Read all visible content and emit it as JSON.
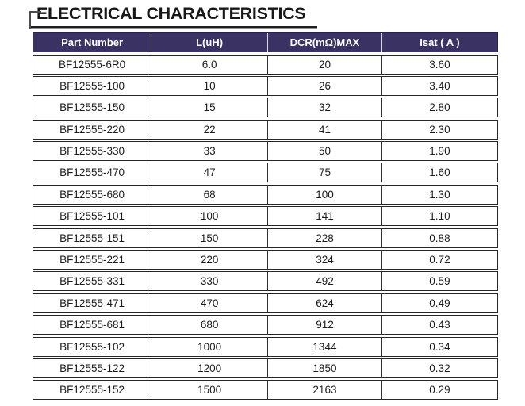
{
  "page": {
    "title": "ELECTRICAL CHARACTERISTICS"
  },
  "table": {
    "columns": [
      "Part Number",
      "L(uH)",
      "DCR(mΩ)MAX",
      "Isat ( A )"
    ],
    "rows": [
      [
        "BF12555-6R0",
        "6.0",
        "20",
        "3.60"
      ],
      [
        "BF12555-100",
        "10",
        "26",
        "3.40"
      ],
      [
        "BF12555-150",
        "15",
        "32",
        "2.80"
      ],
      [
        "BF12555-220",
        "22",
        "41",
        "2.30"
      ],
      [
        "BF12555-330",
        "33",
        "50",
        "1.90"
      ],
      [
        "BF12555-470",
        "47",
        "75",
        "1.60"
      ],
      [
        "BF12555-680",
        "68",
        "100",
        "1.30"
      ],
      [
        "BF12555-101",
        "100",
        "141",
        "1.10"
      ],
      [
        "BF12555-151",
        "150",
        "228",
        "0.88"
      ],
      [
        "BF12555-221",
        "220",
        "324",
        "0.72"
      ],
      [
        "BF12555-331",
        "330",
        "492",
        "0.59"
      ],
      [
        "BF12555-471",
        "470",
        "624",
        "0.49"
      ],
      [
        "BF12555-681",
        "680",
        "912",
        "0.43"
      ],
      [
        "BF12555-102",
        "1000",
        "1344",
        "0.34"
      ],
      [
        "BF12555-122",
        "1200",
        "1850",
        "0.32"
      ],
      [
        "BF12555-152",
        "1500",
        "2163",
        "0.29"
      ]
    ]
  },
  "colors": {
    "header_bg": "#3B3264",
    "header_text": "#FFFFFF",
    "row_border": "#262626",
    "title_text": "#181818",
    "underline": "#1F1F1F"
  }
}
